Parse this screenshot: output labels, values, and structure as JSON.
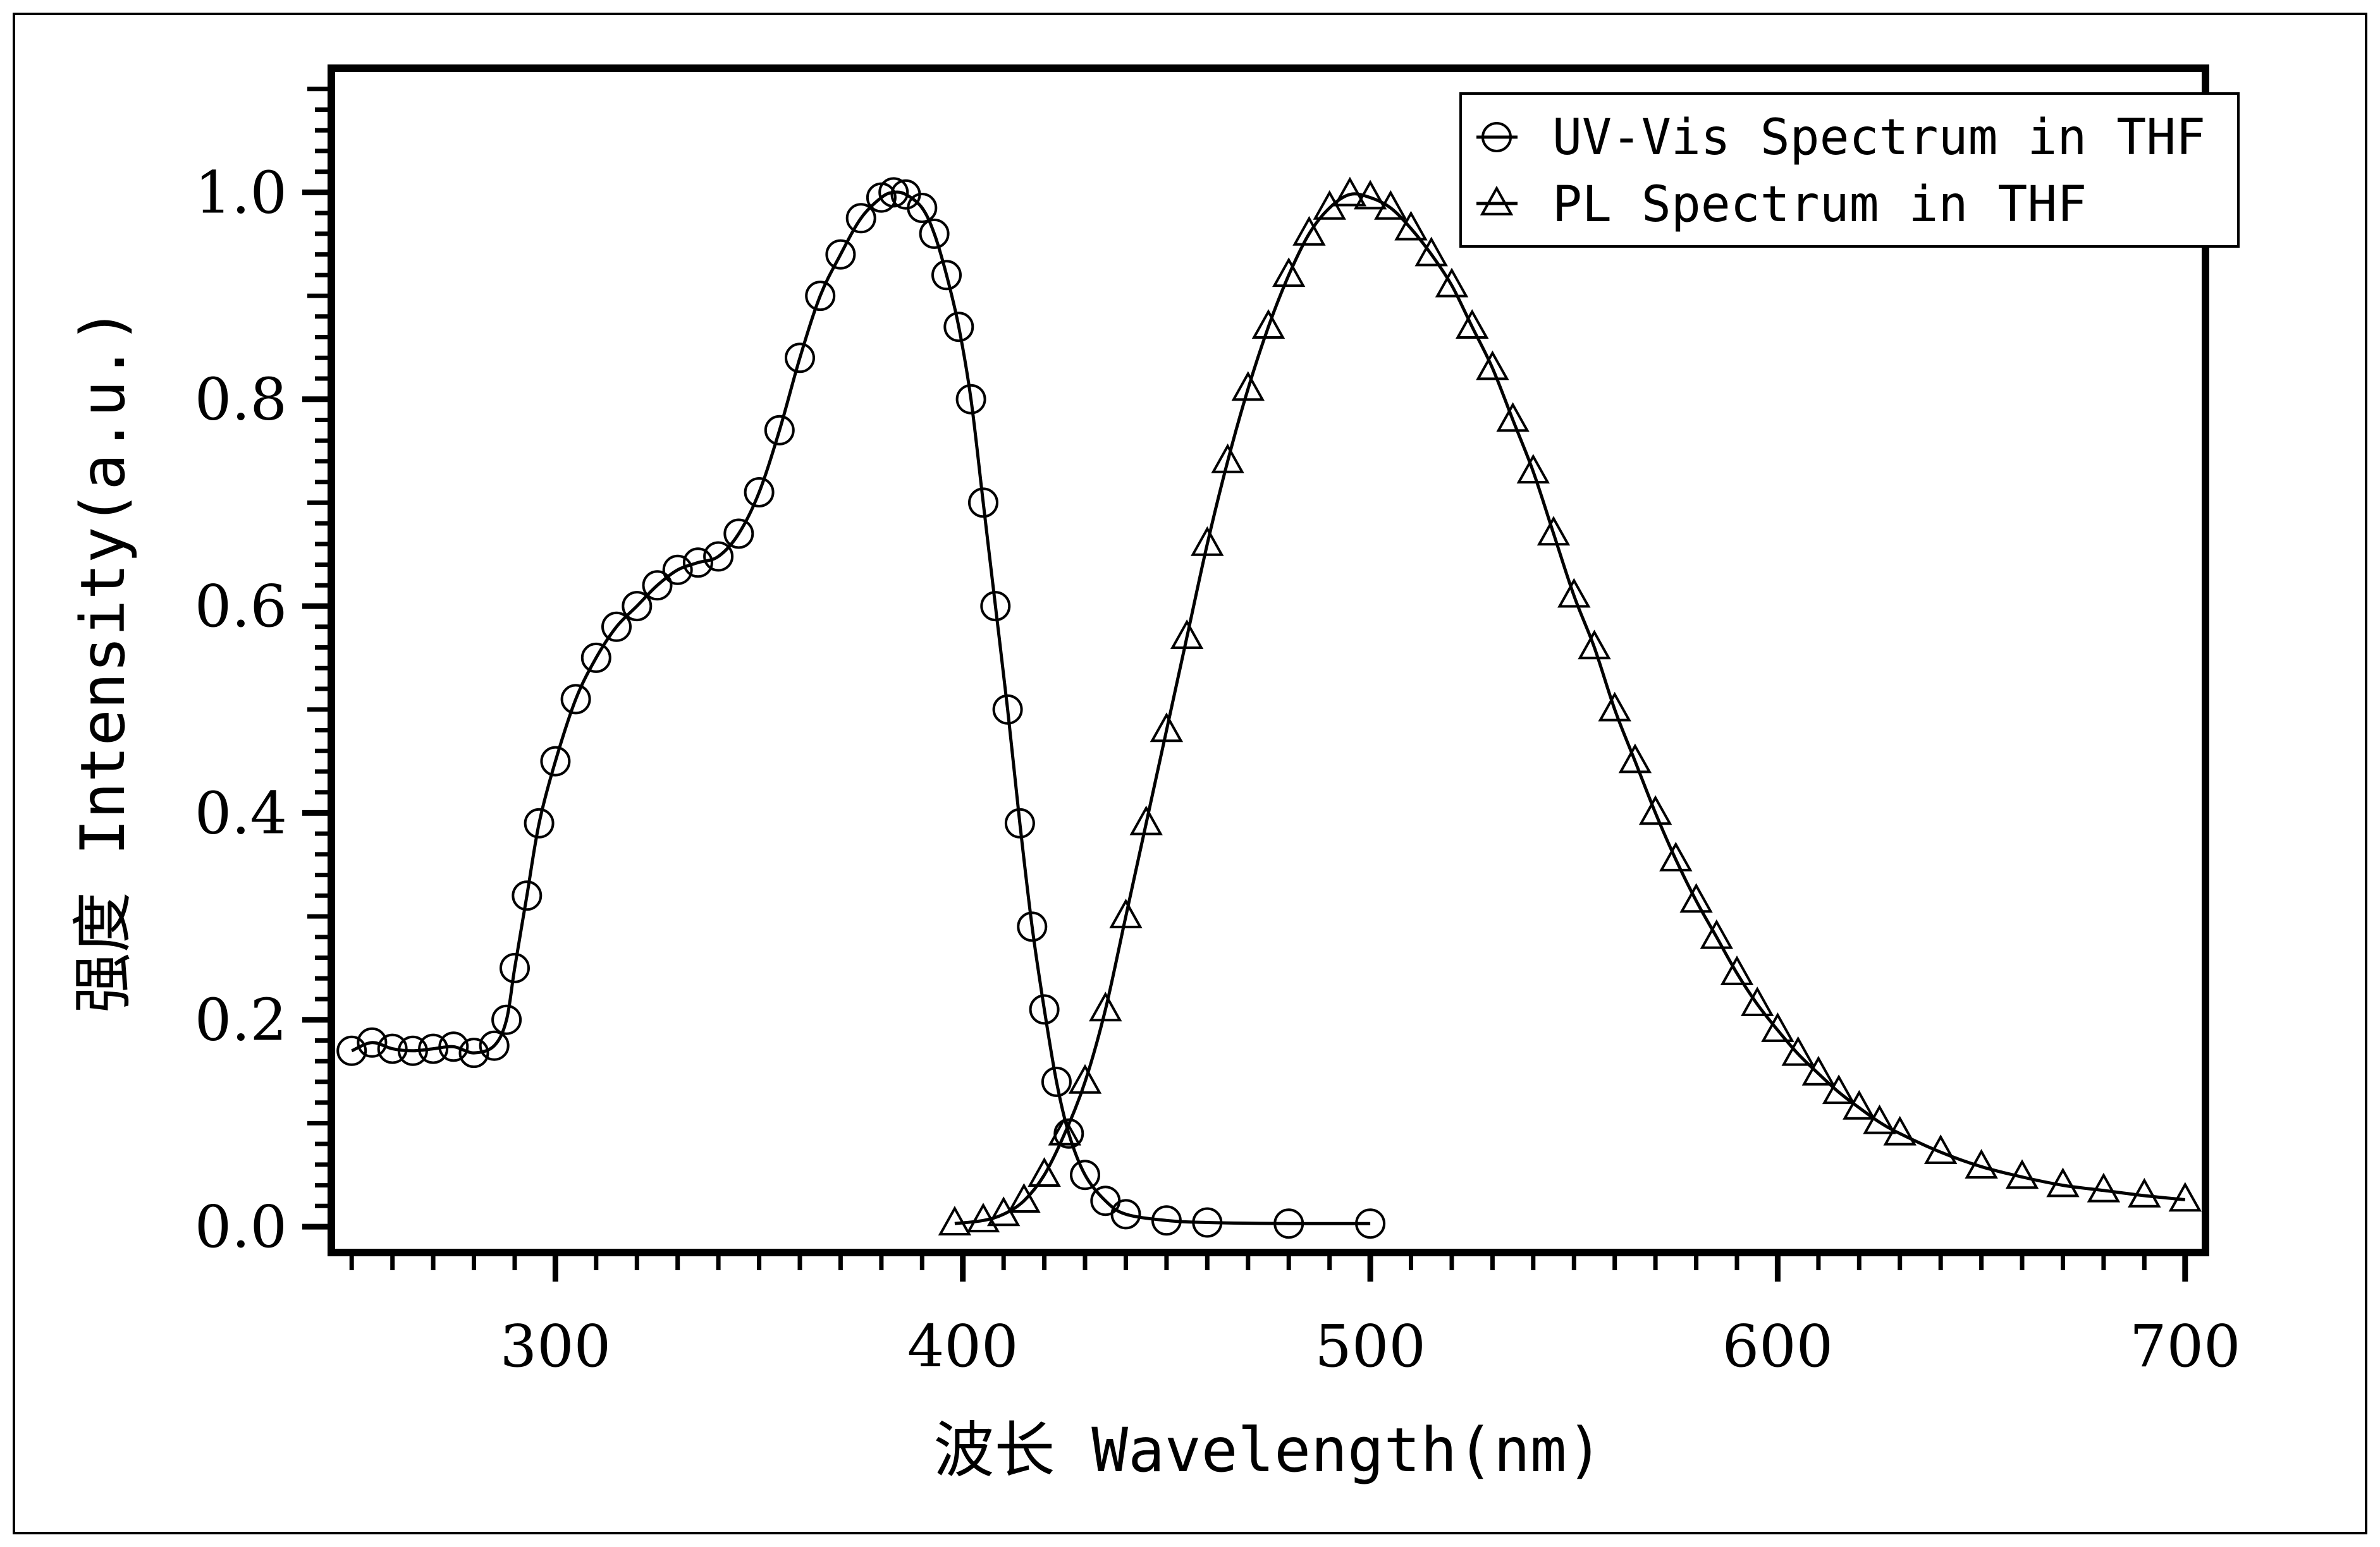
{
  "chart_data": {
    "type": "scatter",
    "title": "",
    "xlabel": "波长 Wavelength(nm)",
    "ylabel": "强度 Intensity(a.u.)",
    "xlim": [
      245,
      705
    ],
    "ylim": [
      -0.025,
      1.12
    ],
    "x_ticks": [
      300,
      400,
      500,
      600,
      700
    ],
    "x_tick_labels": [
      "300",
      "400",
      "500",
      "600",
      "700"
    ],
    "y_ticks": [
      0.0,
      0.2,
      0.4,
      0.6,
      0.8,
      1.0
    ],
    "y_tick_labels": [
      "0.0",
      "0.2",
      "0.4",
      "0.6",
      "0.8",
      "1.0"
    ],
    "grid": false,
    "legend_position": "top-right",
    "line_color": "#000000",
    "series": [
      {
        "name": "UV-Vis Spectrum in THF",
        "marker": "circle",
        "points": [
          [
            250,
            0.17
          ],
          [
            255,
            0.178
          ],
          [
            260,
            0.172
          ],
          [
            265,
            0.17
          ],
          [
            270,
            0.172
          ],
          [
            275,
            0.174
          ],
          [
            280,
            0.168
          ],
          [
            285,
            0.175
          ],
          [
            288,
            0.2
          ],
          [
            290,
            0.25
          ],
          [
            293,
            0.32
          ],
          [
            296,
            0.39
          ],
          [
            300,
            0.45
          ],
          [
            305,
            0.51
          ],
          [
            310,
            0.55
          ],
          [
            315,
            0.58
          ],
          [
            320,
            0.6
          ],
          [
            325,
            0.62
          ],
          [
            330,
            0.635
          ],
          [
            335,
            0.642
          ],
          [
            340,
            0.648
          ],
          [
            345,
            0.67
          ],
          [
            350,
            0.71
          ],
          [
            355,
            0.77
          ],
          [
            360,
            0.84
          ],
          [
            365,
            0.9
          ],
          [
            370,
            0.94
          ],
          [
            375,
            0.975
          ],
          [
            380,
            0.995
          ],
          [
            383,
            1.0
          ],
          [
            386,
            0.998
          ],
          [
            390,
            0.985
          ],
          [
            393,
            0.96
          ],
          [
            396,
            0.92
          ],
          [
            399,
            0.87
          ],
          [
            402,
            0.8
          ],
          [
            405,
            0.7
          ],
          [
            408,
            0.6
          ],
          [
            411,
            0.5
          ],
          [
            414,
            0.39
          ],
          [
            417,
            0.29
          ],
          [
            420,
            0.21
          ],
          [
            423,
            0.14
          ],
          [
            426,
            0.09
          ],
          [
            430,
            0.05
          ],
          [
            435,
            0.025
          ],
          [
            440,
            0.012
          ],
          [
            450,
            0.006
          ],
          [
            460,
            0.004
          ],
          [
            480,
            0.003
          ],
          [
            500,
            0.003
          ]
        ]
      },
      {
        "name": "PL Spectrum in THF",
        "marker": "triangle",
        "points": [
          [
            398,
            0.003
          ],
          [
            405,
            0.006
          ],
          [
            410,
            0.012
          ],
          [
            415,
            0.025
          ],
          [
            420,
            0.05
          ],
          [
            425,
            0.09
          ],
          [
            430,
            0.14
          ],
          [
            435,
            0.21
          ],
          [
            440,
            0.3
          ],
          [
            445,
            0.39
          ],
          [
            450,
            0.48
          ],
          [
            455,
            0.57
          ],
          [
            460,
            0.66
          ],
          [
            465,
            0.74
          ],
          [
            470,
            0.81
          ],
          [
            475,
            0.87
          ],
          [
            480,
            0.92
          ],
          [
            485,
            0.96
          ],
          [
            490,
            0.985
          ],
          [
            495,
            0.998
          ],
          [
            500,
            0.995
          ],
          [
            505,
            0.985
          ],
          [
            510,
            0.965
          ],
          [
            515,
            0.94
          ],
          [
            520,
            0.91
          ],
          [
            525,
            0.87
          ],
          [
            530,
            0.83
          ],
          [
            535,
            0.78
          ],
          [
            540,
            0.73
          ],
          [
            545,
            0.67
          ],
          [
            550,
            0.61
          ],
          [
            555,
            0.56
          ],
          [
            560,
            0.5
          ],
          [
            565,
            0.45
          ],
          [
            570,
            0.4
          ],
          [
            575,
            0.355
          ],
          [
            580,
            0.315
          ],
          [
            585,
            0.28
          ],
          [
            590,
            0.245
          ],
          [
            595,
            0.215
          ],
          [
            600,
            0.19
          ],
          [
            605,
            0.167
          ],
          [
            610,
            0.148
          ],
          [
            615,
            0.13
          ],
          [
            620,
            0.115
          ],
          [
            625,
            0.101
          ],
          [
            630,
            0.09
          ],
          [
            640,
            0.072
          ],
          [
            650,
            0.058
          ],
          [
            660,
            0.048
          ],
          [
            670,
            0.04
          ],
          [
            680,
            0.035
          ],
          [
            690,
            0.03
          ],
          [
            700,
            0.026
          ]
        ]
      }
    ]
  }
}
